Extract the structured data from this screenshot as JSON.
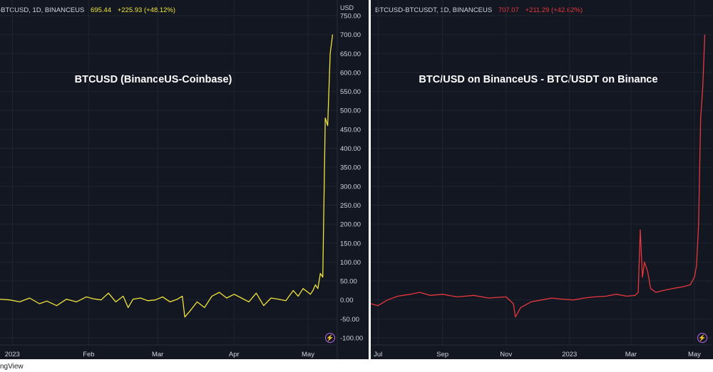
{
  "colors": {
    "background": "#131722",
    "grid": "#1f2430",
    "axis_text": "#d1d4dc",
    "series_left": "#f0e43a",
    "series_right": "#e8373d",
    "badge": "#b665e8"
  },
  "footer": {
    "brand": "ngView"
  },
  "left": {
    "header": {
      "symbol": "-BTCUSD, 1D, BINANCEUS",
      "last": "695.44",
      "change": "+225.93 (+48.12%)"
    },
    "unit": "USD",
    "icon": "lightning-bolt-icon"
  },
  "right": {
    "header": {
      "symbol": "BTCUSD-BTCUSDT, 1D, BINANCEUS",
      "last": "707.07",
      "change": "+211.29 (+42.62%)"
    },
    "icon": "lightning-bolt-icon"
  },
  "chart_data": [
    {
      "type": "line",
      "title": "BTCUSD (BinanceUS-Coinbase)",
      "ylabel": "USD",
      "ylim": [
        -100,
        750
      ],
      "yticks": [
        "750.00",
        "700.00",
        "650.00",
        "600.00",
        "550.00",
        "500.00",
        "450.00",
        "400.00",
        "350.00",
        "300.00",
        "250.00",
        "200.00",
        "150.00",
        "100.00",
        "50.00",
        "0.00",
        "-50.00",
        "-100.00"
      ],
      "xlim": [
        "2022-12-27",
        "2023-05-12"
      ],
      "xticks": [
        {
          "label": "2023",
          "x": "2023-01-01"
        },
        {
          "label": "Feb",
          "x": "2023-02-01"
        },
        {
          "label": "Mar",
          "x": "2023-03-01"
        },
        {
          "label": "Apr",
          "x": "2023-04-01"
        },
        {
          "label": "May",
          "x": "2023-05-01"
        }
      ],
      "grid": true,
      "series": [
        {
          "x": [
            "2022-12-27",
            "2022-12-31",
            "2023-01-04",
            "2023-01-08",
            "2023-01-12",
            "2023-01-15",
            "2023-01-19",
            "2023-01-23",
            "2023-01-27",
            "2023-01-31",
            "2023-02-03",
            "2023-02-06",
            "2023-02-09",
            "2023-02-12",
            "2023-02-15",
            "2023-02-17",
            "2023-02-19",
            "2023-02-22",
            "2023-02-25",
            "2023-02-28",
            "2023-03-03",
            "2023-03-06",
            "2023-03-09",
            "2023-03-11",
            "2023-03-12",
            "2023-03-14",
            "2023-03-17",
            "2023-03-20",
            "2023-03-23",
            "2023-03-26",
            "2023-03-29",
            "2023-04-01",
            "2023-04-04",
            "2023-04-07",
            "2023-04-10",
            "2023-04-13",
            "2023-04-16",
            "2023-04-19",
            "2023-04-22",
            "2023-04-25",
            "2023-04-27",
            "2023-04-29",
            "2023-05-01",
            "2023-05-02",
            "2023-05-03",
            "2023-05-04",
            "2023-05-05",
            "2023-05-06",
            "2023-05-07",
            "2023-05-08",
            "2023-05-09",
            "2023-05-10",
            "2023-05-11"
          ],
          "y": [
            2,
            0,
            -5,
            5,
            -10,
            -3,
            -15,
            2,
            -5,
            8,
            3,
            0,
            18,
            -5,
            10,
            -20,
            2,
            5,
            -2,
            0,
            8,
            -5,
            2,
            10,
            -45,
            -30,
            -5,
            -20,
            10,
            20,
            5,
            15,
            5,
            -5,
            18,
            -15,
            5,
            2,
            -2,
            25,
            10,
            30,
            20,
            15,
            25,
            40,
            30,
            70,
            60,
            480,
            460,
            650,
            700
          ]
        }
      ]
    },
    {
      "type": "line",
      "title": "BTC/USD on BinanceUS - BTC/USDT on Binance",
      "ylim": [
        -100,
        750
      ],
      "xlim": [
        "2022-06-24",
        "2023-05-12"
      ],
      "xticks": [
        {
          "label": "Jul",
          "x": "2022-07-01"
        },
        {
          "label": "Sep",
          "x": "2022-09-01"
        },
        {
          "label": "Nov",
          "x": "2022-11-01"
        },
        {
          "label": "2023",
          "x": "2023-01-01"
        },
        {
          "label": "Mar",
          "x": "2023-03-01"
        },
        {
          "label": "May",
          "x": "2023-05-01"
        }
      ],
      "grid": true,
      "series": [
        {
          "x": [
            "2022-06-24",
            "2022-07-01",
            "2022-07-10",
            "2022-07-20",
            "2022-08-01",
            "2022-08-10",
            "2022-08-20",
            "2022-09-01",
            "2022-09-15",
            "2022-10-01",
            "2022-10-15",
            "2022-11-01",
            "2022-11-08",
            "2022-11-10",
            "2022-11-15",
            "2022-11-25",
            "2022-12-05",
            "2022-12-15",
            "2022-12-25",
            "2023-01-05",
            "2023-01-15",
            "2023-01-25",
            "2023-02-05",
            "2023-02-15",
            "2023-02-25",
            "2023-03-05",
            "2023-03-08",
            "2023-03-10",
            "2023-03-12",
            "2023-03-14",
            "2023-03-17",
            "2023-03-20",
            "2023-03-25",
            "2023-04-01",
            "2023-04-10",
            "2023-04-20",
            "2023-04-27",
            "2023-05-01",
            "2023-05-03",
            "2023-05-05",
            "2023-05-07",
            "2023-05-09",
            "2023-05-11"
          ],
          "y": [
            -10,
            -15,
            0,
            10,
            15,
            20,
            12,
            15,
            8,
            12,
            5,
            8,
            -10,
            -45,
            -20,
            -5,
            0,
            5,
            2,
            0,
            5,
            8,
            10,
            15,
            10,
            12,
            20,
            185,
            60,
            100,
            75,
            30,
            20,
            25,
            30,
            35,
            40,
            60,
            90,
            200,
            480,
            560,
            700
          ]
        }
      ]
    }
  ]
}
